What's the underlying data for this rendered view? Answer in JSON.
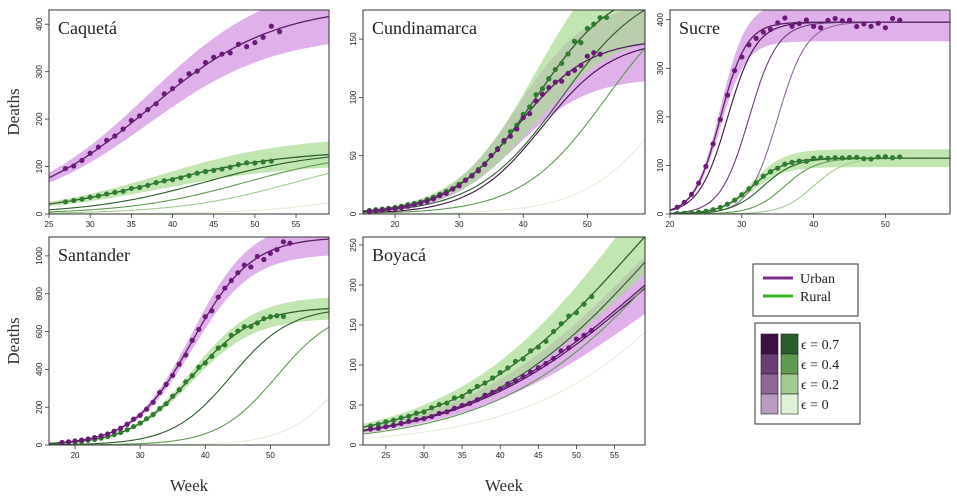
{
  "figure": {
    "ylabel": "Deaths",
    "xlabel": "Week"
  },
  "legend": {
    "series": [
      {
        "label": "Urban",
        "color": "#7b2d8e"
      },
      {
        "label": "Rural",
        "color": "#3cb021"
      }
    ],
    "epsilon": [
      {
        "label": "ϵ = 0.7",
        "urban": "#3d1045",
        "rural": "#2a5c2a"
      },
      {
        "label": "ϵ = 0.4",
        "urban": "#6a3d74",
        "rural": "#5f9a52"
      },
      {
        "label": "ϵ = 0.2",
        "urban": "#8f6898",
        "rural": "#a2cc8f"
      },
      {
        "label": "ϵ = 0",
        "urban": "#b89cc0",
        "rural": "#dff1d7"
      }
    ]
  },
  "colors": {
    "urban_band": "#d9a2e6",
    "rural_band": "#a8dc92",
    "overlap_band": "#a6a6a6",
    "urban_point": "#6b1a78",
    "rural_point": "#2e7d2e",
    "urban_line": "#5a1e66",
    "rural_line": "#2d5e2d"
  },
  "chart_data": [
    {
      "type": "line",
      "title": "Caquetá",
      "xlim": [
        25,
        59
      ],
      "ylim": [
        0,
        430
      ],
      "xticks": [
        25,
        30,
        35,
        40,
        45,
        50,
        55
      ],
      "yticks": [
        0,
        100,
        200,
        300,
        400
      ],
      "urban": {
        "K": 440,
        "r": 0.13,
        "t0": 37,
        "band": 0.14,
        "obs_start": 27,
        "obs_end": 53
      },
      "rural": {
        "K": 135,
        "r": 0.125,
        "t0": 38.5,
        "band": 0.22,
        "obs_start": 27,
        "obs_end": 52
      },
      "scenarios_urban": [],
      "scenarios_rural": [
        {
          "eps": "0.7",
          "K": 135,
          "r": 0.14,
          "t0": 44
        },
        {
          "eps": "0.4",
          "K": 135,
          "r": 0.14,
          "t0": 49
        },
        {
          "eps": "0.2",
          "K": 135,
          "r": 0.14,
          "t0": 55
        },
        {
          "eps": "0",
          "K": 135,
          "r": 0.14,
          "t0": 70
        }
      ],
      "show_ylabel": true,
      "show_xlabel": false
    },
    {
      "type": "line",
      "title": "Cundinamarca",
      "xlim": [
        15,
        59
      ],
      "ylim": [
        0,
        175
      ],
      "xticks": [
        20,
        30,
        40,
        50
      ],
      "yticks": [
        0,
        50,
        100,
        150
      ],
      "urban": {
        "K": 150,
        "r": 0.18,
        "t0": 39,
        "band": 0.22,
        "obs_start": 16,
        "obs_end": 52
      },
      "rural": {
        "K": 200,
        "r": 0.16,
        "t0": 42,
        "band": 0.22,
        "obs_start": 16,
        "obs_end": 53
      },
      "scenarios_urban": [
        {
          "eps": "0.7",
          "K": 150,
          "r": 0.18,
          "t0": 43
        }
      ],
      "scenarios_rural": [
        {
          "eps": "0.7",
          "K": 200,
          "r": 0.15,
          "t0": 46
        },
        {
          "eps": "0.4",
          "K": 200,
          "r": 0.15,
          "t0": 53
        },
        {
          "eps": "0",
          "K": 200,
          "r": 0.15,
          "t0": 64
        }
      ],
      "show_ylabel": false,
      "show_xlabel": false
    },
    {
      "type": "line",
      "title": "Sucre",
      "xlim": [
        20,
        59
      ],
      "ylim": [
        0,
        420
      ],
      "xticks": [
        20,
        30,
        40,
        50
      ],
      "yticks": [
        0,
        100,
        200,
        300,
        400
      ],
      "urban": {
        "K": 395,
        "r": 0.55,
        "t0": 27,
        "band": 0.1,
        "obs_start": 21,
        "obs_end": 52
      },
      "rural": {
        "K": 115,
        "r": 0.45,
        "t0": 31.5,
        "band": 0.16,
        "obs_start": 21,
        "obs_end": 52
      },
      "scenarios_urban": [
        {
          "eps": "0.7",
          "K": 395,
          "r": 0.5,
          "t0": 28
        },
        {
          "eps": "0.4",
          "K": 395,
          "r": 0.5,
          "t0": 31
        },
        {
          "eps": "0.2",
          "K": 395,
          "r": 0.5,
          "t0": 35
        }
      ],
      "scenarios_rural": [
        {
          "eps": "0.7",
          "K": 115,
          "r": 0.45,
          "t0": 33
        },
        {
          "eps": "0.4",
          "K": 115,
          "r": 0.45,
          "t0": 36
        },
        {
          "eps": "0.2",
          "K": 115,
          "r": 0.45,
          "t0": 40
        }
      ],
      "show_ylabel": false,
      "show_xlabel": false
    },
    {
      "type": "line",
      "title": "Santander",
      "xlim": [
        16,
        59
      ],
      "ylim": [
        0,
        1100
      ],
      "xticks": [
        20,
        30,
        40,
        50
      ],
      "yticks": [
        0,
        200,
        400,
        600,
        800,
        1000
      ],
      "urban": {
        "K": 1100,
        "r": 0.22,
        "t0": 38,
        "band": 0.08,
        "obs_start": 18,
        "obs_end": 53
      },
      "rural": {
        "K": 730,
        "r": 0.21,
        "t0": 38,
        "band": 0.08,
        "obs_start": 18,
        "obs_end": 52
      },
      "scenarios_urban": [],
      "scenarios_rural": [
        {
          "eps": "0.7",
          "K": 730,
          "r": 0.22,
          "t0": 44
        },
        {
          "eps": "0.4",
          "K": 730,
          "r": 0.22,
          "t0": 51
        },
        {
          "eps": "0",
          "K": 730,
          "r": 0.22,
          "t0": 62
        }
      ],
      "show_ylabel": true,
      "show_xlabel": true
    },
    {
      "type": "line",
      "title": "Boyacá",
      "xlim": [
        22,
        59
      ],
      "ylim": [
        0,
        260
      ],
      "xticks": [
        25,
        30,
        35,
        40,
        45,
        50,
        55
      ],
      "yticks": [
        0,
        50,
        100,
        150,
        200,
        250
      ],
      "urban": {
        "K": 400,
        "r": 0.082,
        "t0": 59,
        "band": 0.18,
        "obs_start": 23,
        "obs_end": 52
      },
      "rural": {
        "K": 500,
        "r": 0.085,
        "t0": 58,
        "band": 0.18,
        "obs_start": 23,
        "obs_end": 52
      },
      "scenarios_urban": [
        {
          "eps": "0.7",
          "K": 400,
          "r": 0.082,
          "t0": 59.5
        }
      ],
      "scenarios_rural": [
        {
          "eps": "0.7",
          "K": 500,
          "r": 0.085,
          "t0": 61
        },
        {
          "eps": "0.4",
          "K": 500,
          "r": 0.085,
          "t0": 64
        },
        {
          "eps": "0",
          "K": 500,
          "r": 0.085,
          "t0": 70
        }
      ],
      "show_ylabel": false,
      "show_xlabel": true
    }
  ]
}
